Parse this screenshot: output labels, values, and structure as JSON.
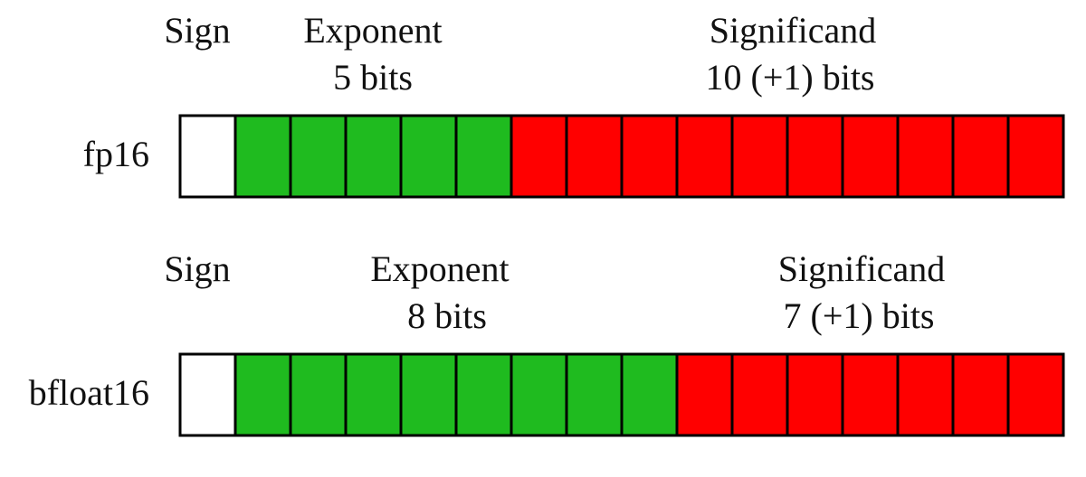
{
  "formats": [
    {
      "label": "fp16",
      "sign": "Sign",
      "exponent": {
        "title": "Exponent",
        "bits": "5 bits"
      },
      "significand": {
        "title": "Significand",
        "bits": "10 (+1) bits"
      }
    },
    {
      "label": "bfloat16",
      "sign": "Sign",
      "exponent": {
        "title": "Exponent",
        "bits": "8 bits"
      },
      "significand": {
        "title": "Significand",
        "bits": "7 (+1) bits"
      }
    }
  ]
}
